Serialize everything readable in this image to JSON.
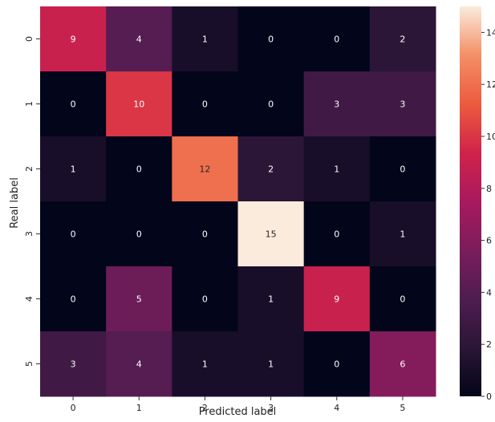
{
  "chart_data": {
    "type": "heatmap",
    "xlabel": "Predicted label",
    "ylabel": "Real label",
    "x_categories": [
      "0",
      "1",
      "2",
      "3",
      "4",
      "5"
    ],
    "y_categories": [
      "0",
      "1",
      "2",
      "3",
      "4",
      "5"
    ],
    "values": [
      [
        9,
        4,
        1,
        0,
        0,
        2
      ],
      [
        0,
        10,
        0,
        0,
        3,
        3
      ],
      [
        1,
        0,
        12,
        2,
        1,
        0
      ],
      [
        0,
        0,
        0,
        15,
        0,
        1
      ],
      [
        0,
        5,
        0,
        1,
        9,
        0
      ],
      [
        3,
        4,
        1,
        1,
        0,
        6
      ]
    ],
    "colorbar": {
      "range": [
        0,
        15
      ],
      "ticks": [
        "0",
        "2",
        "4",
        "6",
        "8",
        "10",
        "12",
        "14"
      ],
      "colormap": "rocket"
    }
  }
}
